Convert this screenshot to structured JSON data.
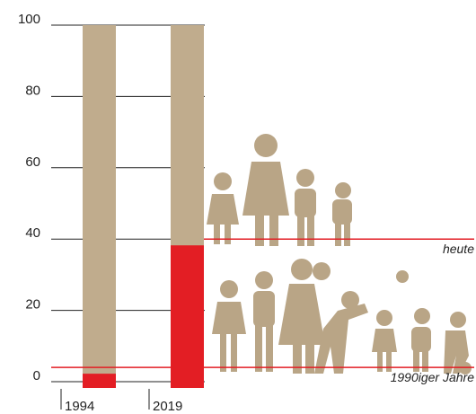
{
  "chart_data": {
    "type": "bar",
    "categories": [
      "1994",
      "2019"
    ],
    "series": [
      {
        "color": "#e31e24",
        "values": [
          4,
          40
        ]
      },
      {
        "color": "#c0ac8d",
        "values": [
          96,
          60
        ]
      }
    ],
    "stacked": true,
    "ylim": [
      0,
      100
    ],
    "yticks": [
      0,
      20,
      40,
      60,
      80,
      100
    ],
    "grid": true,
    "reference_lines": [
      {
        "value": 40,
        "label": "heute",
        "color": "#e31e24"
      },
      {
        "value": 4,
        "label": "1990iger Jahre",
        "color": "#e31e24"
      }
    ]
  }
}
